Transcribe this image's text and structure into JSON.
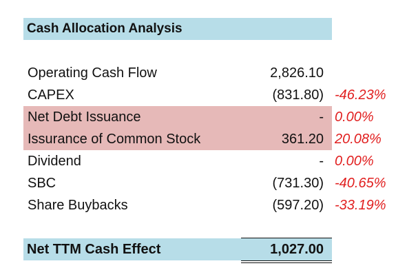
{
  "title": "Cash Allocation Analysis",
  "rows": [
    {
      "label": "Operating Cash Flow",
      "value": "2,826.10",
      "pct": ""
    },
    {
      "label": "CAPEX",
      "value": "(831.80)",
      "pct": "-46.23%"
    },
    {
      "label": "Net Debt Issuance",
      "value": "-",
      "pct": "0.00%"
    },
    {
      "label": "Issurance of Common Stock",
      "value": "361.20",
      "pct": "20.08%"
    },
    {
      "label": "Dividend",
      "value": "-",
      "pct": "0.00%"
    },
    {
      "label": "SBC",
      "value": "(731.30)",
      "pct": "-40.65%"
    },
    {
      "label": "Share Buybacks",
      "value": "(597.20)",
      "pct": "-33.19%"
    }
  ],
  "total": {
    "label": "Net TTM Cash Effect",
    "value": "1,027.00"
  },
  "colors": {
    "header_fill": "#b7dde8",
    "highlight_fill": "#e6b9b8",
    "pct_text": "#e11f1f"
  }
}
